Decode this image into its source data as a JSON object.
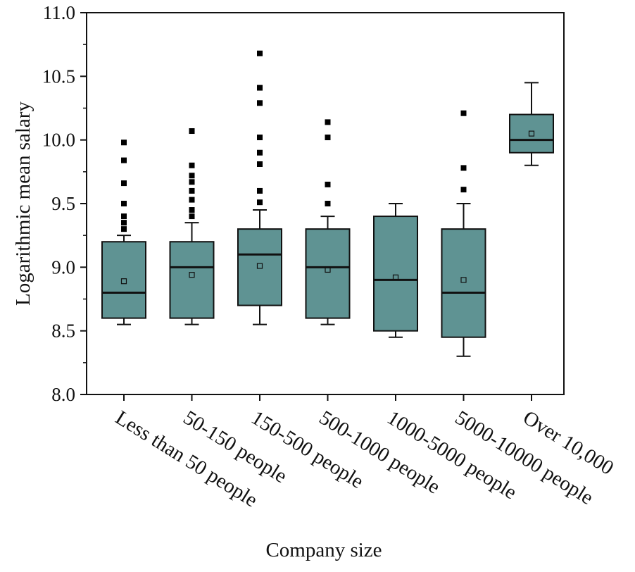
{
  "chart_data": {
    "type": "box",
    "xlabel": "Company size",
    "ylabel": "Logarithmic mean salary",
    "ylim": [
      8.0,
      11.0
    ],
    "yticks": [
      "8.0",
      "8.5",
      "9.0",
      "9.5",
      "10.0",
      "10.5",
      "11.0"
    ],
    "categories": [
      "Less than 50 people",
      "50-150 people",
      "150-500 people",
      "500-1000 people",
      "1000-5000 people",
      "5000-10000 people",
      "Over 10,000"
    ],
    "boxes": [
      {
        "whisker_low": 8.55,
        "q1": 8.6,
        "median": 8.8,
        "q3": 9.2,
        "whisker_high": 9.25,
        "mean": 8.89,
        "outliers": [
          9.3,
          9.35,
          9.4,
          9.5,
          9.66,
          9.84,
          9.98
        ]
      },
      {
        "whisker_low": 8.55,
        "q1": 8.6,
        "median": 9.0,
        "q3": 9.2,
        "whisker_high": 9.35,
        "mean": 8.94,
        "outliers": [
          9.4,
          9.45,
          9.53,
          9.6,
          9.67,
          9.72,
          9.8,
          10.07
        ]
      },
      {
        "whisker_low": 8.55,
        "q1": 8.7,
        "median": 9.1,
        "q3": 9.3,
        "whisker_high": 9.45,
        "mean": 9.01,
        "outliers": [
          9.51,
          9.6,
          9.81,
          9.9,
          10.02,
          10.29,
          10.41,
          10.68
        ]
      },
      {
        "whisker_low": 8.55,
        "q1": 8.6,
        "median": 9.0,
        "q3": 9.3,
        "whisker_high": 9.4,
        "mean": 8.98,
        "outliers": [
          9.5,
          9.65,
          10.02,
          10.14
        ]
      },
      {
        "whisker_low": 8.45,
        "q1": 8.5,
        "median": 8.9,
        "q3": 9.4,
        "whisker_high": 9.5,
        "mean": 8.92,
        "outliers": []
      },
      {
        "whisker_low": 8.3,
        "q1": 8.45,
        "median": 8.8,
        "q3": 9.3,
        "whisker_high": 9.5,
        "mean": 8.9,
        "outliers": [
          9.61,
          9.78,
          10.21
        ]
      },
      {
        "whisker_low": 9.8,
        "q1": 9.9,
        "median": 10.0,
        "q3": 10.2,
        "whisker_high": 10.45,
        "mean": 10.05,
        "outliers": []
      }
    ],
    "colors": {
      "box_fill": "#5f9393",
      "stroke": "#111111",
      "outlier": "#000000",
      "background": "#ffffff"
    }
  }
}
